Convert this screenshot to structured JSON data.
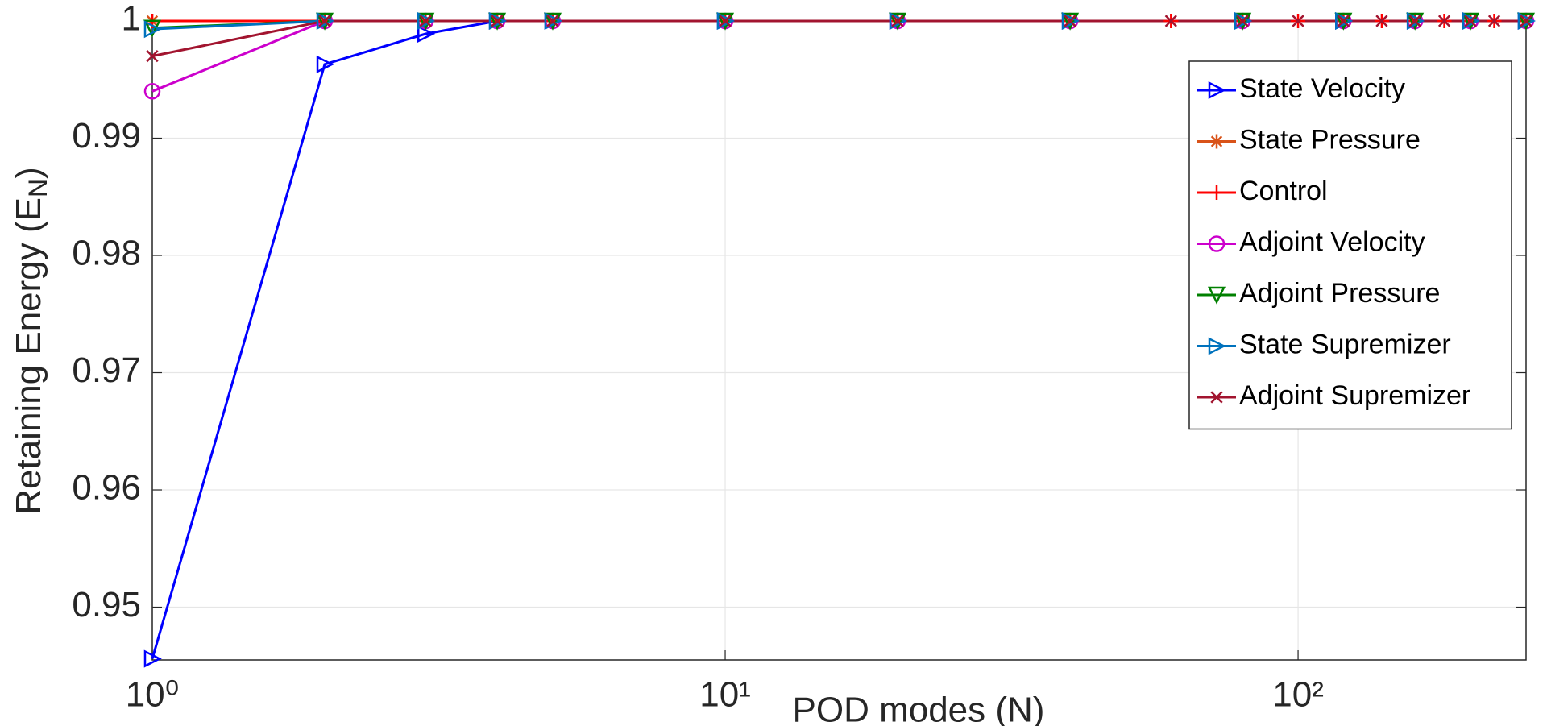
{
  "chart_data": {
    "type": "line",
    "xlabel": "POD modes (N)",
    "ylabel": [
      "Retaining Energy (E",
      "N",
      ")"
    ],
    "xscale": "log",
    "xlim": [
      1,
      250
    ],
    "ylim": [
      0.9455,
      1
    ],
    "xticks": [
      {
        "value": 1,
        "label": "10⁰"
      },
      {
        "value": 10,
        "label": "10¹"
      },
      {
        "value": 100,
        "label": "10²"
      }
    ],
    "yticks": [
      0.95,
      0.96,
      0.97,
      0.98,
      0.99,
      1
    ],
    "grid": true,
    "legend": "upper right",
    "series": [
      {
        "name": "State Velocity",
        "color": "#0000ff",
        "marker": "triangle-right",
        "x": [
          1,
          2,
          3,
          4,
          5,
          10,
          20,
          40,
          80,
          120,
          160,
          200,
          250
        ],
        "values": [
          0.9456,
          0.9963,
          0.9989,
          1,
          1,
          1,
          1,
          1,
          1,
          1,
          1,
          1,
          1
        ]
      },
      {
        "name": "State Pressure",
        "color": "#d95319",
        "marker": "asterisk",
        "x": [
          1,
          2,
          3,
          4,
          5,
          10,
          20,
          40,
          80,
          120,
          160,
          200,
          250
        ],
        "values": [
          1,
          1,
          1,
          1,
          1,
          1,
          1,
          1,
          1,
          1,
          1,
          1,
          1
        ]
      },
      {
        "name": "Control",
        "color": "#ff0000",
        "marker": "plus",
        "x": [
          1,
          2,
          3,
          4,
          5,
          10,
          20,
          40,
          60,
          80,
          100,
          120,
          140,
          160,
          180,
          200,
          220,
          250
        ],
        "values": [
          1,
          1,
          1,
          1,
          1,
          1,
          1,
          1,
          1,
          1,
          1,
          1,
          1,
          1,
          1,
          1,
          1,
          1
        ]
      },
      {
        "name": "Adjoint Velocity",
        "color": "#cc00cc",
        "marker": "circle",
        "x": [
          1,
          2,
          3,
          4,
          5,
          10,
          20,
          40,
          80,
          120,
          160,
          200,
          250
        ],
        "values": [
          0.994,
          1,
          1,
          1,
          1,
          1,
          1,
          1,
          1,
          1,
          1,
          1,
          1
        ]
      },
      {
        "name": "Adjoint Pressure",
        "color": "#008000",
        "marker": "triangle-down",
        "x": [
          1,
          2,
          3,
          4,
          5,
          10,
          20,
          40,
          80,
          120,
          160,
          200,
          250
        ],
        "values": [
          0.9994,
          1,
          1,
          1,
          1,
          1,
          1,
          1,
          1,
          1,
          1,
          1,
          1
        ]
      },
      {
        "name": "State Supremizer",
        "color": "#0072bd",
        "marker": "triangle-right",
        "x": [
          1,
          2,
          3,
          4,
          5,
          10,
          20,
          40,
          80,
          120,
          160,
          200,
          250
        ],
        "values": [
          0.9993,
          1,
          1,
          1,
          1,
          1,
          1,
          1,
          1,
          1,
          1,
          1,
          1
        ]
      },
      {
        "name": "Adjoint Supremizer",
        "color": "#a2142f",
        "marker": "x",
        "x": [
          1,
          2,
          3,
          4,
          5,
          10,
          20,
          40,
          60,
          80,
          100,
          120,
          140,
          160,
          180,
          200,
          220,
          250
        ],
        "values": [
          0.997,
          1,
          1,
          1,
          1,
          1,
          1,
          1,
          1,
          1,
          1,
          1,
          1,
          1,
          1,
          1,
          1,
          1
        ]
      }
    ]
  }
}
